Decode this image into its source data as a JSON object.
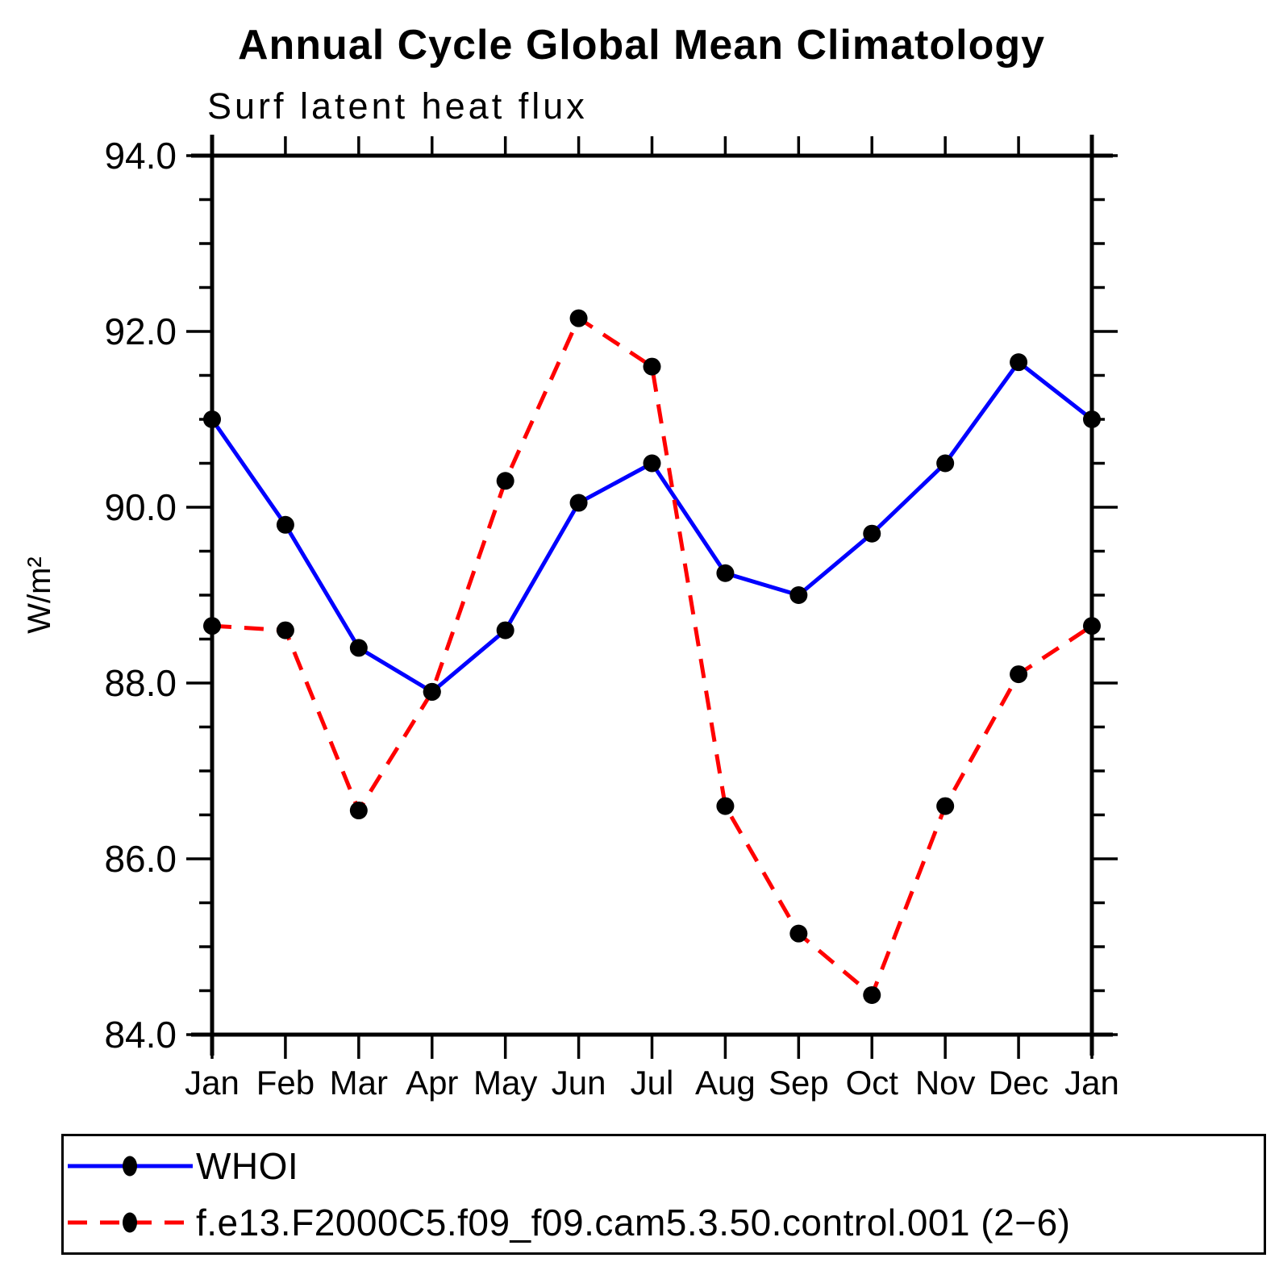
{
  "title": "Annual Cycle Global Mean Climatology",
  "subtitle": "Surf latent heat flux",
  "chart_data": {
    "type": "line",
    "categories": [
      "Jan",
      "Feb",
      "Mar",
      "Apr",
      "May",
      "Jun",
      "Jul",
      "Aug",
      "Sep",
      "Oct",
      "Nov",
      "Dec",
      "Jan"
    ],
    "series": [
      {
        "name": "WHOI",
        "color": "#0000ff",
        "line_style": "solid",
        "marker": "filled-circle",
        "marker_color": "#000000",
        "values": [
          91.0,
          89.8,
          88.4,
          87.9,
          88.6,
          90.05,
          90.5,
          89.25,
          89.0,
          89.7,
          90.5,
          91.65,
          91.0
        ]
      },
      {
        "name": "f.e13.F2000C5.f09_f09.cam5.3.50.control.001 (2−6)",
        "color": "#ff0000",
        "line_style": "dashed",
        "marker": "filled-circle",
        "marker_color": "#000000",
        "values": [
          88.65,
          88.6,
          86.55,
          87.9,
          90.3,
          92.15,
          91.6,
          86.6,
          85.15,
          84.45,
          86.6,
          88.1,
          88.65
        ]
      }
    ],
    "xlabel": "",
    "ylabel": "W/m²",
    "ylim": [
      84.0,
      94.0
    ],
    "ytick_step": 2.0,
    "yminor_step": 0.5,
    "ytick_labels": [
      "84.0",
      "86.0",
      "88.0",
      "90.0",
      "92.0",
      "94.0"
    ],
    "grid": false,
    "legend_position": "bottom",
    "axis_color": "#000000",
    "background_color": "#ffffff"
  }
}
